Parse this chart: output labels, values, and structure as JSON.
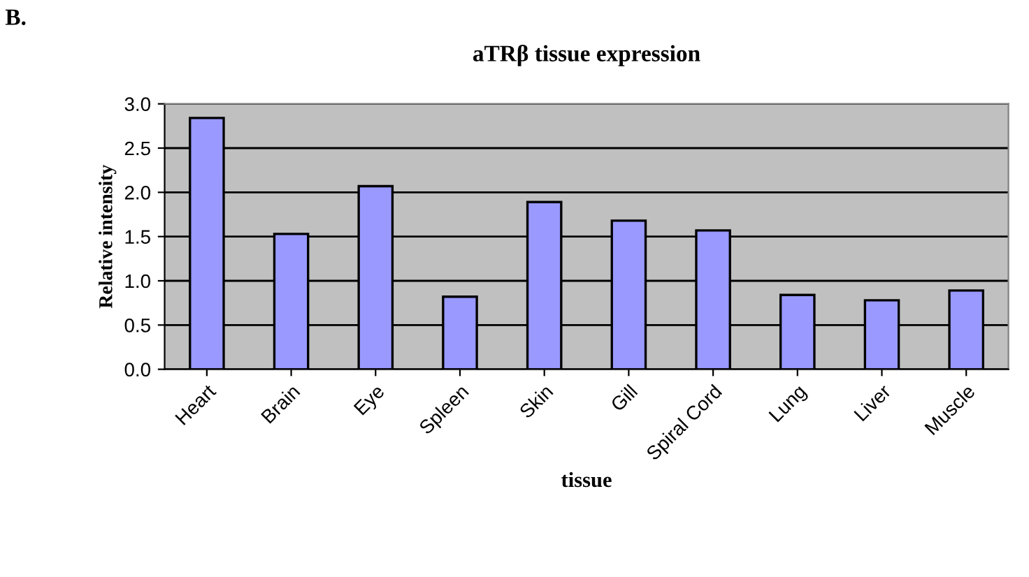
{
  "chart_data": {
    "type": "bar",
    "title": "aTRβ tissue expression",
    "xlabel": "tissue",
    "ylabel": "Relative intensity",
    "annotations": [
      "B."
    ],
    "categories": [
      "Heart",
      "Brain",
      "Eye",
      "Spleen",
      "Skin",
      "Gill",
      "Spiral Cord",
      "Lung",
      "Liver",
      "Muscle"
    ],
    "values": [
      2.84,
      1.53,
      2.07,
      0.82,
      1.89,
      1.68,
      1.57,
      0.84,
      0.78,
      0.89
    ],
    "color": "#9999ff",
    "ylim": [
      0,
      3.0
    ],
    "yticks": [
      {
        "value": 0,
        "label": "0.0"
      },
      {
        "value": 0.5,
        "label": "0.5"
      },
      {
        "value": 1.0,
        "label": "1.0"
      },
      {
        "value": 1.5,
        "label": "1.5"
      },
      {
        "value": 2.0,
        "label": "2.0"
      },
      {
        "value": 2.5,
        "label": "2.5"
      },
      {
        "value": 3.0,
        "label": "3.0"
      }
    ],
    "grid": "y",
    "legend": false
  }
}
